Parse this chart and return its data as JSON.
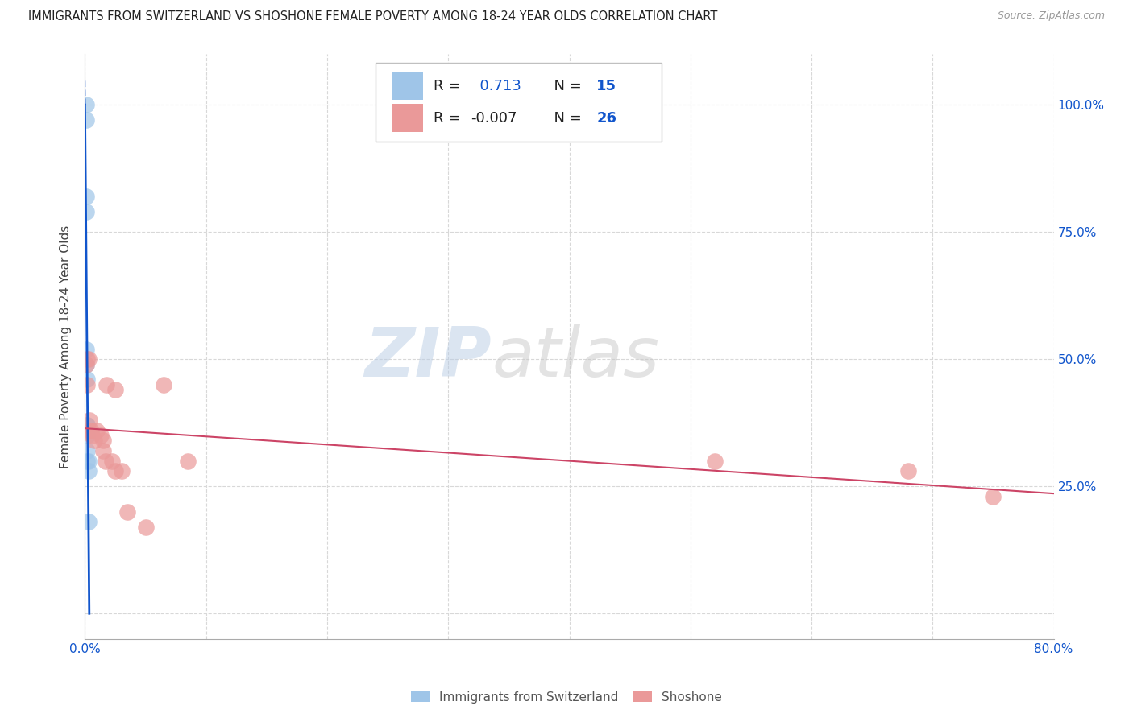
{
  "title": "IMMIGRANTS FROM SWITZERLAND VS SHOSHONE FEMALE POVERTY AMONG 18-24 YEAR OLDS CORRELATION CHART",
  "source": "Source: ZipAtlas.com",
  "ylabel": "Female Poverty Among 18-24 Year Olds",
  "xlim": [
    0.0,
    0.8
  ],
  "ylim": [
    -0.05,
    1.1
  ],
  "plot_ylim": [
    0.0,
    1.0
  ],
  "xticks": [
    0.0,
    0.1,
    0.2,
    0.3,
    0.4,
    0.5,
    0.6,
    0.7,
    0.8
  ],
  "xticklabels": [
    "0.0%",
    "",
    "",
    "",
    "",
    "",
    "",
    "",
    "80.0%"
  ],
  "yticks": [
    0.0,
    0.25,
    0.5,
    0.75,
    1.0
  ],
  "right_yticklabels": [
    "",
    "25.0%",
    "50.0%",
    "75.0%",
    "100.0%"
  ],
  "grid_color": "#d8d8d8",
  "blue_scatter_color": "#9fc5e8",
  "pink_scatter_color": "#ea9999",
  "blue_line_color": "#1155cc",
  "pink_line_color": "#cc4466",
  "legend_text_black": "#222222",
  "legend_text_blue": "#1155cc",
  "tick_color": "#1155cc",
  "R_blue": 0.713,
  "N_blue": 15,
  "R_pink": -0.007,
  "N_pink": 26,
  "swiss_x": [
    0.001,
    0.001,
    0.001,
    0.001,
    0.001,
    0.0013,
    0.0015,
    0.0015,
    0.002,
    0.002,
    0.002,
    0.002,
    0.003,
    0.003,
    0.003
  ],
  "swiss_y": [
    1.0,
    0.97,
    0.82,
    0.79,
    0.52,
    0.49,
    0.46,
    0.37,
    0.37,
    0.35,
    0.32,
    0.3,
    0.3,
    0.28,
    0.18
  ],
  "shoshone_x": [
    0.001,
    0.0015,
    0.002,
    0.003,
    0.004,
    0.004,
    0.005,
    0.006,
    0.008,
    0.01,
    0.013,
    0.015,
    0.015,
    0.017,
    0.018,
    0.022,
    0.025,
    0.025,
    0.03,
    0.035,
    0.05,
    0.065,
    0.085,
    0.52,
    0.68,
    0.75
  ],
  "shoshone_y": [
    0.49,
    0.45,
    0.5,
    0.5,
    0.38,
    0.36,
    0.36,
    0.35,
    0.34,
    0.36,
    0.35,
    0.34,
    0.32,
    0.3,
    0.45,
    0.3,
    0.28,
    0.44,
    0.28,
    0.2,
    0.17,
    0.45,
    0.3,
    0.3,
    0.28,
    0.23
  ],
  "watermark_zip": "ZIP",
  "watermark_atlas": "atlas"
}
